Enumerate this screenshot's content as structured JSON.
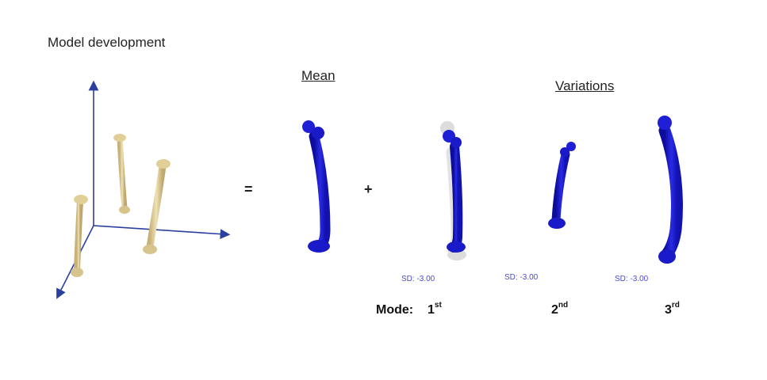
{
  "title": "Model development",
  "mean_label": "Mean",
  "variations_label": "Variations",
  "equals_symbol": "=",
  "plus_symbol": "+",
  "sd_labels": [
    "SD: -3.00",
    "SD: -3.00",
    "SD: -3.00"
  ],
  "mode_prefix": "Mode:",
  "modes": [
    {
      "num": "1",
      "sup": "st"
    },
    {
      "num": "2",
      "sup": "nd"
    },
    {
      "num": "3",
      "sup": "rd"
    }
  ],
  "colors": {
    "axis": "#2b3f9e",
    "bone": "#e6d6a3",
    "bone_shade": "#b9a46e",
    "model_blue": "#1f1fd6",
    "model_dark": "#0b0b8a",
    "ghost": "#d8d8d8",
    "sd_text": "#4b4bd0"
  }
}
